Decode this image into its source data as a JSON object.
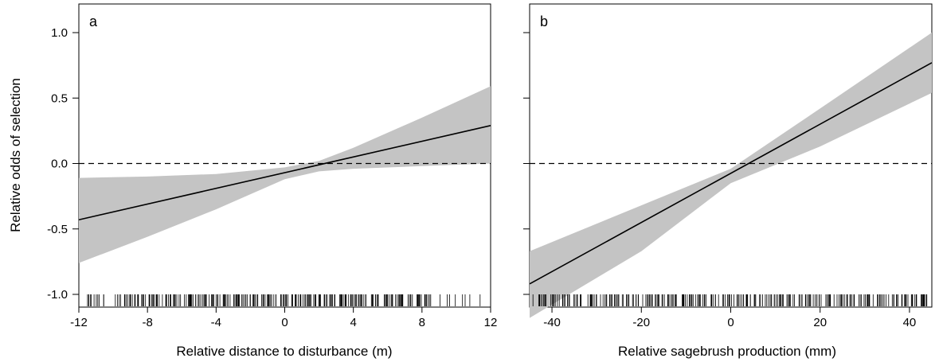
{
  "chart_data": [
    {
      "type": "line",
      "panel_label": "a",
      "xlabel": "Relative distance to disturbance (m)",
      "ylabel": "Relative odds of selection",
      "xlim": [
        -12,
        12
      ],
      "ylim": [
        -1.3,
        1.3
      ],
      "x_ticks": [
        -12,
        -8,
        -4,
        0,
        4,
        8,
        12
      ],
      "x_tick_labels": [
        "-12",
        "-8",
        "-4",
        "0",
        "4",
        "8",
        "12"
      ],
      "y_ticks": [
        -1.0,
        -0.5,
        0.0,
        0.5,
        1.0
      ],
      "y_tick_labels": [
        "-1.0",
        "-0.5",
        "0.0",
        "0.5",
        "1.0"
      ],
      "reference_line_y": 0,
      "x": [
        -12,
        12
      ],
      "y": [
        -0.43,
        0.29
      ],
      "ci_band": {
        "x": [
          -12,
          -8,
          -4,
          0,
          2,
          4,
          8,
          12
        ],
        "lower": [
          -0.76,
          -0.56,
          -0.35,
          -0.12,
          -0.06,
          -0.04,
          -0.02,
          0.0
        ],
        "upper": [
          -0.11,
          -0.1,
          -0.08,
          -0.03,
          0.02,
          0.12,
          0.35,
          0.59
        ]
      },
      "rug": {
        "min": -11.5,
        "max": 11.8,
        "dense_min": -9.5,
        "dense_max": 8.5
      },
      "grid": false,
      "colors": {
        "line": "#000000",
        "band": "#c4c4c4"
      }
    },
    {
      "type": "line",
      "panel_label": "b",
      "xlabel": "Relative sagebrush production (mm)",
      "ylabel": "",
      "xlim": [
        -45,
        45
      ],
      "ylim": [
        -1.3,
        1.3
      ],
      "x_ticks": [
        -40,
        -20,
        0,
        20,
        40
      ],
      "x_tick_labels": [
        "-40",
        "-20",
        "0",
        "20",
        "40"
      ],
      "y_ticks": [
        -1.0,
        -0.5,
        0.0,
        0.5,
        1.0
      ],
      "y_tick_labels": [],
      "reference_line_y": 0,
      "x": [
        -45,
        45
      ],
      "y": [
        -0.92,
        0.77
      ],
      "ci_band": {
        "x": [
          -45,
          -20,
          0,
          20,
          45
        ],
        "lower": [
          -1.18,
          -0.67,
          -0.15,
          0.13,
          0.54
        ],
        "upper": [
          -0.67,
          -0.32,
          -0.04,
          0.42,
          1.0
        ]
      },
      "rug": {
        "min": -44.5,
        "max": 44,
        "dense_min": -40,
        "dense_max": 42
      },
      "grid": false,
      "colors": {
        "line": "#000000",
        "band": "#c4c4c4"
      }
    }
  ]
}
